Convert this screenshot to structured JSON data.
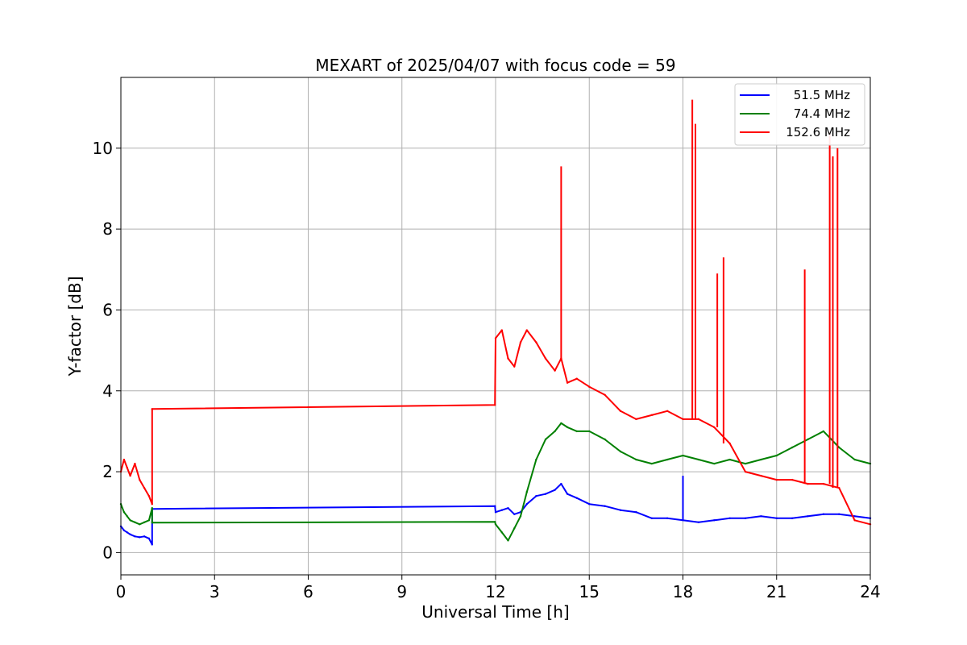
{
  "chart_data": {
    "type": "line",
    "title": "MEXART of 2025/04/07 with focus code = 59",
    "xlabel": "Universal Time [h]",
    "ylabel": "Y-factor [dB]",
    "xlim": [
      0,
      24
    ],
    "ylim": [
      -0.55,
      11.75
    ],
    "xticks": [
      0,
      3,
      6,
      9,
      12,
      15,
      18,
      21,
      24
    ],
    "yticks": [
      0,
      2,
      4,
      6,
      8,
      10
    ],
    "grid": true,
    "legend_position": "top-right",
    "series": [
      {
        "name": "51.5 MHz",
        "color": "#0000ff",
        "x": [
          0,
          0.1,
          0.2,
          0.3,
          0.45,
          0.6,
          0.75,
          0.9,
          1.0,
          1.0,
          11.98,
          12.0,
          12.2,
          12.4,
          12.6,
          12.8,
          13.0,
          13.3,
          13.6,
          13.9,
          14.1,
          14.3,
          14.6,
          15.0,
          15.5,
          16.0,
          16.5,
          17.0,
          17.5,
          18.0,
          18.5,
          19.0,
          19.5,
          20.0,
          20.5,
          21.0,
          21.5,
          22.0,
          22.5,
          23.0,
          23.5,
          24.0
        ],
        "y": [
          0.65,
          0.55,
          0.5,
          0.45,
          0.4,
          0.38,
          0.4,
          0.35,
          0.2,
          1.08,
          1.15,
          1.0,
          1.05,
          1.1,
          0.95,
          1.0,
          1.2,
          1.4,
          1.45,
          1.55,
          1.7,
          1.45,
          1.35,
          1.2,
          1.15,
          1.05,
          1.0,
          0.85,
          0.85,
          0.8,
          0.75,
          0.8,
          0.85,
          0.85,
          0.9,
          0.85,
          0.85,
          0.9,
          0.95,
          0.95,
          0.9,
          0.85
        ]
      },
      {
        "name": "74.4 MHz",
        "color": "#008000",
        "x": [
          0,
          0.1,
          0.2,
          0.3,
          0.45,
          0.6,
          0.75,
          0.9,
          1.0,
          1.0,
          11.98,
          12.0,
          12.2,
          12.4,
          12.6,
          12.8,
          13.0,
          13.3,
          13.6,
          13.9,
          14.1,
          14.3,
          14.6,
          15.0,
          15.5,
          16.0,
          16.5,
          17.0,
          17.5,
          18.0,
          18.5,
          19.0,
          19.5,
          20.0,
          20.5,
          21.0,
          21.5,
          22.0,
          22.5,
          23.0,
          23.5,
          24.0
        ],
        "y": [
          1.2,
          1.0,
          0.9,
          0.8,
          0.75,
          0.7,
          0.75,
          0.8,
          1.1,
          0.74,
          0.76,
          0.7,
          0.5,
          0.3,
          0.6,
          0.9,
          1.5,
          2.3,
          2.8,
          3.0,
          3.2,
          3.1,
          3.0,
          3.0,
          2.8,
          2.5,
          2.3,
          2.2,
          2.3,
          2.4,
          2.3,
          2.2,
          2.3,
          2.2,
          2.3,
          2.4,
          2.6,
          2.8,
          3.0,
          2.6,
          2.3,
          2.2
        ]
      },
      {
        "name": "152.6 MHz",
        "color": "#ff0000",
        "x": [
          0,
          0.1,
          0.2,
          0.3,
          0.45,
          0.6,
          0.75,
          0.9,
          1.0,
          1.0,
          11.98,
          12.0,
          12.2,
          12.4,
          12.6,
          12.8,
          13.0,
          13.3,
          13.6,
          13.9,
          14.1,
          14.3,
          14.6,
          15.0,
          15.5,
          16.0,
          16.5,
          17.0,
          17.5,
          18.0,
          18.5,
          19.0,
          19.5,
          20.0,
          20.5,
          21.0,
          21.5,
          22.0,
          22.5,
          23.0,
          23.5,
          24.0
        ],
        "y": [
          2.0,
          2.3,
          2.1,
          1.9,
          2.2,
          1.8,
          1.6,
          1.4,
          1.2,
          3.55,
          3.65,
          5.3,
          5.5,
          4.8,
          4.6,
          5.2,
          5.5,
          5.2,
          4.8,
          4.5,
          4.8,
          4.2,
          4.3,
          4.1,
          3.9,
          3.5,
          3.3,
          3.4,
          3.5,
          3.3,
          3.3,
          3.1,
          2.7,
          2.0,
          1.9,
          1.8,
          1.8,
          1.7,
          1.7,
          1.6,
          0.8,
          0.7
        ]
      }
    ],
    "spikes": [
      {
        "series": "152.6 MHz",
        "x": 14.1,
        "y": 9.55
      },
      {
        "series": "152.6 MHz",
        "x": 18.3,
        "y": 11.2
      },
      {
        "series": "152.6 MHz",
        "x": 18.4,
        "y": 10.6
      },
      {
        "series": "152.6 MHz",
        "x": 19.1,
        "y": 6.9
      },
      {
        "series": "152.6 MHz",
        "x": 19.3,
        "y": 7.3
      },
      {
        "series": "152.6 MHz",
        "x": 21.9,
        "y": 7.0
      },
      {
        "series": "152.6 MHz",
        "x": 22.7,
        "y": 10.4
      },
      {
        "series": "152.6 MHz",
        "x": 22.8,
        "y": 9.8
      },
      {
        "series": "152.6 MHz",
        "x": 22.95,
        "y": 10.0
      },
      {
        "series": "51.5 MHz",
        "x": 18.0,
        "y": 1.9
      }
    ]
  }
}
